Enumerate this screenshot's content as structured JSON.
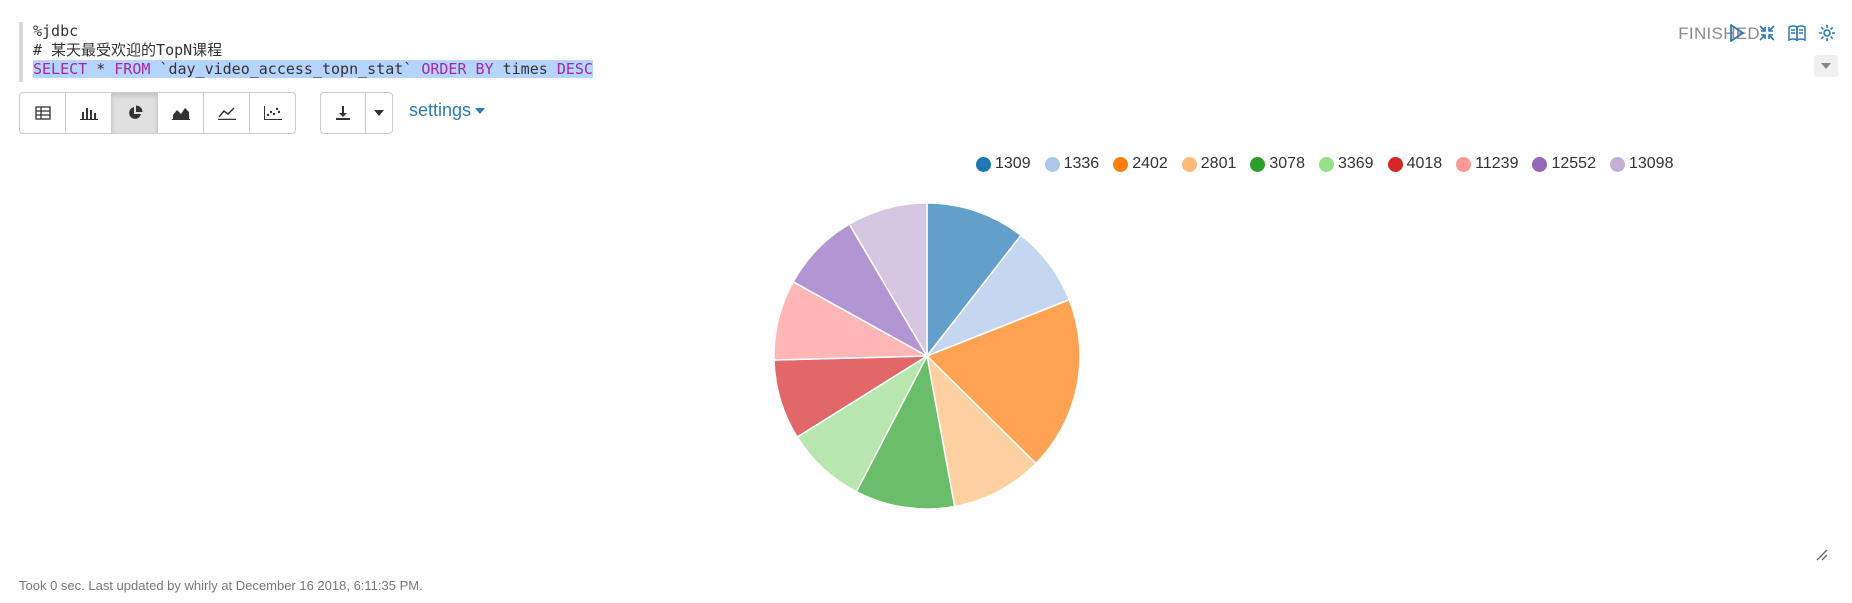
{
  "editor": {
    "line1": "%jdbc",
    "line2": "# 某天最受欢迎的TopN课程",
    "sql": {
      "kw1": "SELECT",
      "part2": " * ",
      "kw2": "FROM",
      "part3": " `day_video_access_topn_stat` ",
      "kw3": "ORDER BY",
      "part4": " times ",
      "kw4": "DESC"
    }
  },
  "paragraph": {
    "status": "FINISHED"
  },
  "toolbar": {
    "settings_label": "settings"
  },
  "colors": {
    "accent": "#2a7ab8"
  },
  "chart_data": {
    "type": "pie",
    "labels": [
      "1309",
      "1336",
      "2402",
      "2801",
      "3078",
      "3369",
      "4018",
      "11239",
      "12552",
      "13098"
    ],
    "values": [
      10.2,
      8.2,
      17.8,
      9.4,
      10.2,
      8.2,
      8.2,
      8.2,
      8.2,
      8.2
    ],
    "legend_colors": [
      "#1f77b4",
      "#aec7e8",
      "#ff7f0e",
      "#ffbb78",
      "#2ca02c",
      "#98df8a",
      "#d62728",
      "#ff9896",
      "#9467bd",
      "#c5b0d5"
    ],
    "slice_colors": [
      "#629fcb",
      "#c5d7f0",
      "#ffa352",
      "#ffd0a0",
      "#6abd6a",
      "#b7e7ae",
      "#e26768",
      "#ffb6b5",
      "#b296d1",
      "#d5c7e3"
    ],
    "legend_position": "top-right"
  },
  "footer": {
    "text": "Took 0 sec. Last updated by whirly at December 16 2018, 6:11:35 PM."
  }
}
